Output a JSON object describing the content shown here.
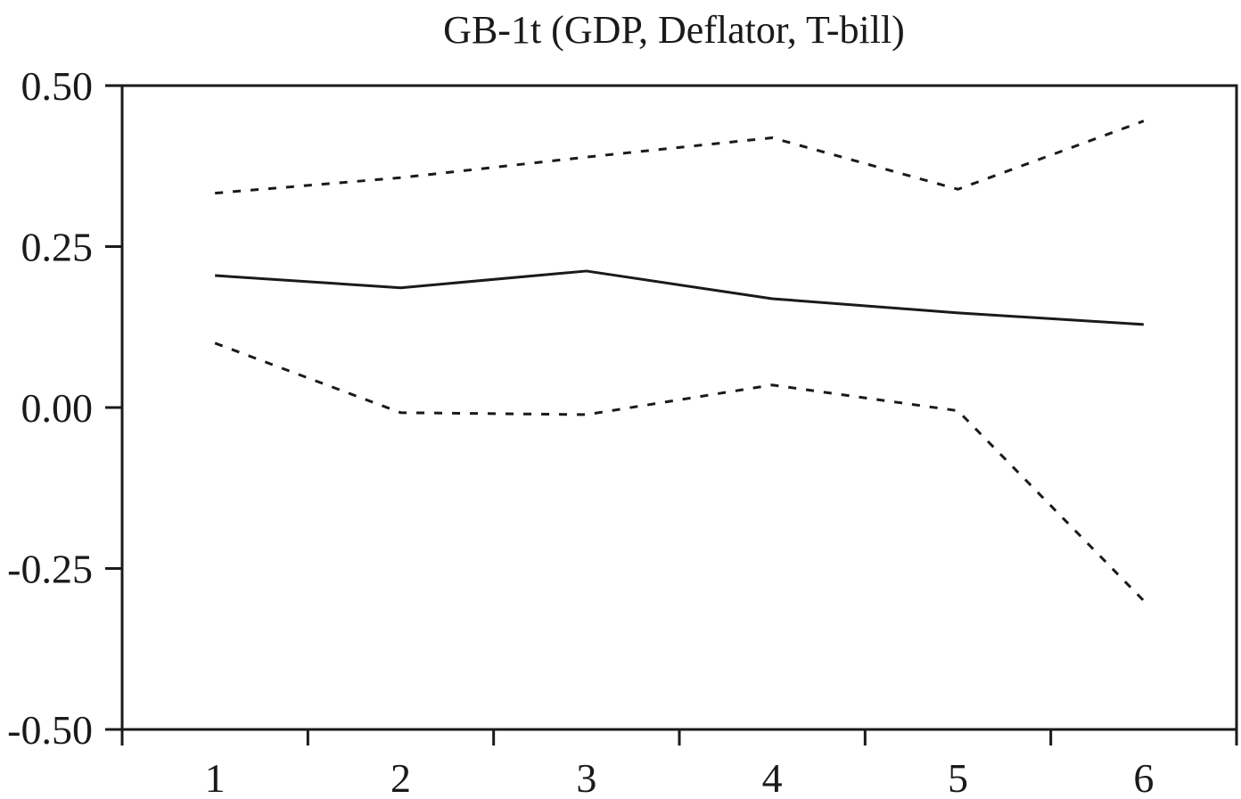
{
  "chart_data": {
    "type": "line",
    "title": "GB-1t (GDP, Deflator, T-bill)",
    "xlabel": "",
    "ylabel": "",
    "x": [
      1,
      2,
      3,
      4,
      5,
      6
    ],
    "x_tick_labels": [
      "1",
      "2",
      "3",
      "4",
      "5",
      "6"
    ],
    "y_tick_values": [
      0.5,
      0.25,
      0.0,
      -0.25,
      -0.5
    ],
    "y_tick_labels": [
      "0.50",
      "0.25",
      "0.00",
      "-0.25",
      "-0.50"
    ],
    "ylim": [
      -0.5,
      0.5
    ],
    "xlim": [
      0.5,
      6.5
    ],
    "grid": false,
    "legend": "none",
    "series": [
      {
        "style": "solid",
        "values": [
          0.205,
          0.186,
          0.212,
          0.169,
          0.147,
          0.129
        ]
      },
      {
        "style": "dotted",
        "values": [
          0.333,
          0.357,
          0.389,
          0.419,
          0.339,
          0.445
        ]
      },
      {
        "style": "dotted",
        "values": [
          0.1,
          -0.008,
          -0.011,
          0.035,
          -0.005,
          -0.3
        ]
      }
    ],
    "colors": {
      "ink": "#1a1a1a",
      "background": "#ffffff"
    }
  }
}
